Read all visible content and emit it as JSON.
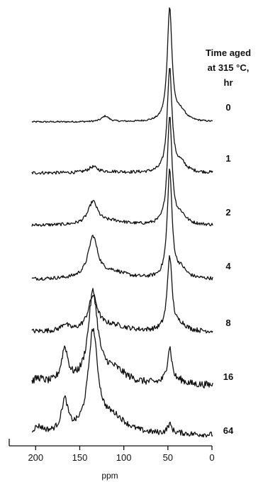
{
  "chart_data": {
    "type": "line",
    "title": "",
    "legend_title_lines": [
      "Time aged",
      "at 315 °C,",
      "hr"
    ],
    "xlabel": "ppm",
    "ylabel": "",
    "xlim": [
      230,
      0
    ],
    "x_reversed": true,
    "x_ticks": [
      200,
      150,
      100,
      50,
      0
    ],
    "x_tick_labels": [
      "200",
      "150",
      "100",
      "50",
      "0"
    ],
    "grid": false,
    "series_labels": [
      "0",
      "1",
      "2",
      "4",
      "8",
      "16",
      "64"
    ],
    "peaks": [
      {
        "name": "0",
        "p48": 1.0,
        "p135": 0.0,
        "p120": 0.05,
        "p168": 0.0,
        "p197": 0.0,
        "noise": 0.01
      },
      {
        "name": "1",
        "p48": 0.92,
        "p135": 0.05,
        "p120": 0.0,
        "p168": 0.0,
        "p197": 0.0,
        "noise": 0.02
      },
      {
        "name": "2",
        "p48": 0.95,
        "p135": 0.2,
        "p120": 0.0,
        "p168": 0.0,
        "p197": 0.0,
        "noise": 0.02
      },
      {
        "name": "4",
        "p48": 0.95,
        "p135": 0.36,
        "p120": 0.0,
        "p168": 0.0,
        "p197": 0.0,
        "noise": 0.022
      },
      {
        "name": "8",
        "p48": 0.66,
        "p135": 0.3,
        "p120": 0.0,
        "p168": 0.06,
        "p197": 0.0,
        "noise": 0.03
      },
      {
        "name": "16",
        "p48": 0.32,
        "p135": 0.78,
        "p120": 0.0,
        "p168": 0.3,
        "p197": 0.05,
        "noise": 0.045
      },
      {
        "name": "64",
        "p48": 0.08,
        "p135": 0.88,
        "p120": 0.0,
        "p168": 0.28,
        "p197": 0.06,
        "noise": 0.035
      }
    ]
  }
}
